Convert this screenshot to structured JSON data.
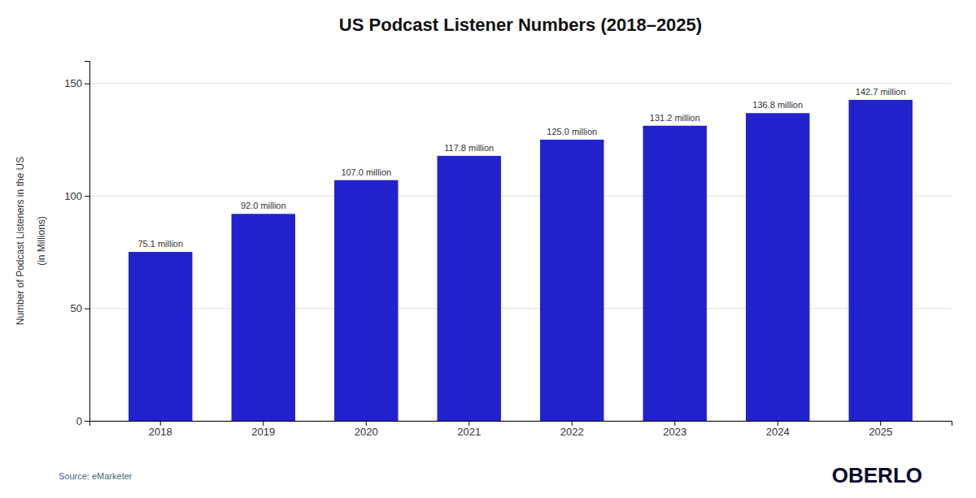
{
  "chart_data": {
    "type": "bar",
    "title": "US Podcast Listener Numbers (2018–2025)",
    "ylabel": [
      "Number of Podcast Listeners in the US",
      "(in Millions)"
    ],
    "categories": [
      "2018",
      "2019",
      "2020",
      "2021",
      "2022",
      "2023",
      "2024",
      "2025"
    ],
    "values": [
      75.1,
      92.0,
      107.0,
      117.8,
      125.0,
      131.2,
      136.8,
      142.7
    ],
    "value_labels": [
      "75.1 million",
      "92.0 million",
      "107.0 million",
      "117.8 million",
      "125.0 million",
      "131.2 million",
      "136.8 million",
      "142.7 million"
    ],
    "data_labels": true,
    "color": "#2222CC",
    "ylim": [
      0,
      160
    ],
    "yticks": [
      0,
      50,
      100,
      150
    ],
    "grid": true,
    "annotations": [
      "Source: eMarketer",
      "OBERLO"
    ]
  }
}
